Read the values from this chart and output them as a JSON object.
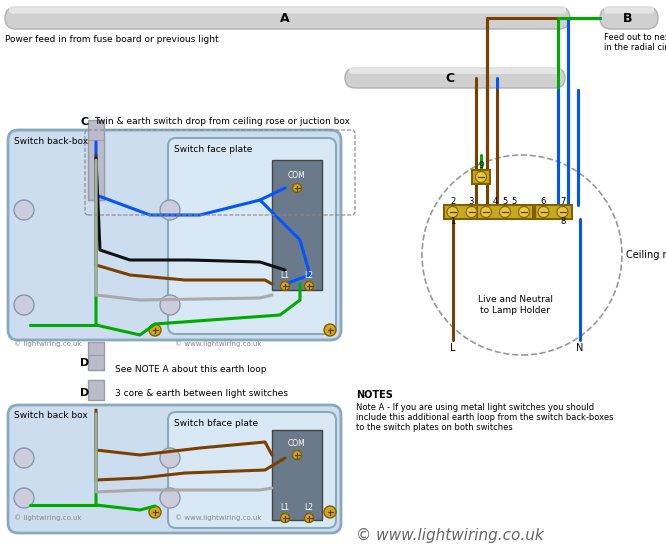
{
  "bg_color": "#ffffff",
  "blue": "#0055ff",
  "brown": "#7B3F00",
  "green": "#00aa00",
  "black": "#111111",
  "gray_wire": "#aaaaaa",
  "switch_bg": "#ccddf0",
  "switch_bg2": "#d8e8f5",
  "switch_plate": "#6a7a8a",
  "terminal_color": "#d4a820",
  "cable_gray": "#c8c8c8",
  "notes_text": "NOTES\nNote A - If you are using metal light switches you should\ninclude this additional earth loop from the switch back-boxes\nto the switch plates on both switches",
  "watermark_small": "© lightwiring.co.uk",
  "watermark_small2": "© www.lightwiring.co.uk",
  "watermark_large": "© www.lightwiring.co.uk",
  "label_A": "A",
  "label_B": "B",
  "label_C": "C",
  "label_D": "D",
  "text_power_feed": "Power feed in from fuse board or previous light",
  "text_feed_out": "Feed out to next light\nin the radial circuit",
  "text_twin_earth": "Twin & earth switch drop from ceiling rose or juction box",
  "text_3core": "3 core & earth between light switches",
  "text_see_note": "See NOTE A about this earth loop",
  "text_ceiling_rose": "Ceiling rose",
  "text_live_neutral": "Live and Neutral\nto Lamp Holder",
  "text_switch_backbox1": "Switch back-box",
  "text_switch_faceplate1": "Switch face plate",
  "text_switch_backbox2": "Switch back box",
  "text_switch_faceplate2": "Switch bface plate",
  "text_COM": "COM",
  "text_L1": "L1",
  "text_L2": "L2",
  "text_L": "L",
  "text_N": "N"
}
